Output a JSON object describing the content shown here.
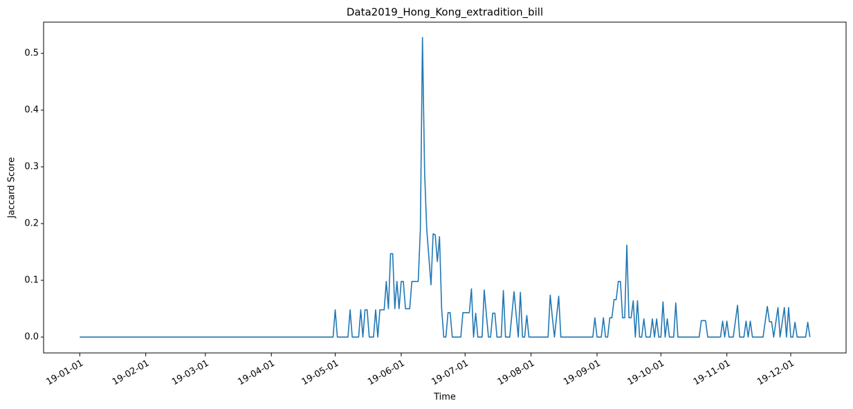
{
  "chart_data": {
    "type": "line",
    "title": "Data2019_Hong_Kong_extradition_bill",
    "x_label": "Time",
    "y_label": "Jaccard Score",
    "xlim": [
      "2018-12-15",
      "2019-12-27"
    ],
    "ylim": [
      -0.028,
      0.555
    ],
    "xticks": [
      {
        "value": "2019-01-01",
        "label": "19-01-01"
      },
      {
        "value": "2019-02-01",
        "label": "19-02-01"
      },
      {
        "value": "2019-03-01",
        "label": "19-03-01"
      },
      {
        "value": "2019-04-01",
        "label": "19-04-01"
      },
      {
        "value": "2019-05-01",
        "label": "19-05-01"
      },
      {
        "value": "2019-06-01",
        "label": "19-06-01"
      },
      {
        "value": "2019-07-01",
        "label": "19-07-01"
      },
      {
        "value": "2019-08-01",
        "label": "19-08-01"
      },
      {
        "value": "2019-09-01",
        "label": "19-09-01"
      },
      {
        "value": "2019-10-01",
        "label": "19-10-01"
      },
      {
        "value": "2019-11-01",
        "label": "19-11-01"
      },
      {
        "value": "2019-12-01",
        "label": "19-12-01"
      }
    ],
    "yticks": [
      {
        "value": 0,
        "label": "0.0"
      },
      0.1,
      0.2,
      0.3,
      0.4,
      0.5
    ],
    "color": "#1f77b4",
    "x": [
      "2019-01-01",
      "2019-04-30",
      "2019-05-01",
      "2019-05-02",
      "2019-05-07",
      "2019-05-08",
      "2019-05-09",
      "2019-05-12",
      "2019-05-13",
      "2019-05-14",
      "2019-05-15",
      "2019-05-16",
      "2019-05-17",
      "2019-05-19",
      "2019-05-20",
      "2019-05-21",
      "2019-05-22",
      "2019-05-24",
      "2019-05-25",
      "2019-05-26",
      "2019-05-27",
      "2019-05-28",
      "2019-05-29",
      "2019-05-30",
      "2019-05-31",
      "2019-06-01",
      "2019-06-02",
      "2019-06-03",
      "2019-06-05",
      "2019-06-06",
      "2019-06-09",
      "2019-06-10",
      "2019-06-11",
      "2019-06-12",
      "2019-06-13",
      "2019-06-15",
      "2019-06-16",
      "2019-06-17",
      "2019-06-18",
      "2019-06-19",
      "2019-06-20",
      "2019-06-21",
      "2019-06-22",
      "2019-06-23",
      "2019-06-24",
      "2019-06-25",
      "2019-06-29",
      "2019-06-30",
      "2019-07-03",
      "2019-07-04",
      "2019-07-05",
      "2019-07-06",
      "2019-07-07",
      "2019-07-09",
      "2019-07-10",
      "2019-07-11",
      "2019-07-12",
      "2019-07-13",
      "2019-07-14",
      "2019-07-15",
      "2019-07-16",
      "2019-07-18",
      "2019-07-19",
      "2019-07-20",
      "2019-07-22",
      "2019-07-23",
      "2019-07-24",
      "2019-07-25",
      "2019-07-26",
      "2019-07-27",
      "2019-07-28",
      "2019-07-29",
      "2019-07-30",
      "2019-07-31",
      "2019-08-09",
      "2019-08-10",
      "2019-08-11",
      "2019-08-12",
      "2019-08-14",
      "2019-08-15",
      "2019-08-30",
      "2019-08-31",
      "2019-09-01",
      "2019-09-03",
      "2019-09-04",
      "2019-09-05",
      "2019-09-06",
      "2019-09-07",
      "2019-09-08",
      "2019-09-09",
      "2019-09-10",
      "2019-09-11",
      "2019-09-12",
      "2019-09-13",
      "2019-09-14",
      "2019-09-15",
      "2019-09-16",
      "2019-09-17",
      "2019-09-18",
      "2019-09-19",
      "2019-09-20",
      "2019-09-21",
      "2019-09-22",
      "2019-09-23",
      "2019-09-24",
      "2019-09-26",
      "2019-09-27",
      "2019-09-28",
      "2019-09-29",
      "2019-09-30",
      "2019-10-01",
      "2019-10-02",
      "2019-10-03",
      "2019-10-04",
      "2019-10-05",
      "2019-10-07",
      "2019-10-08",
      "2019-10-09",
      "2019-10-19",
      "2019-10-20",
      "2019-10-22",
      "2019-10-23",
      "2019-10-29",
      "2019-10-30",
      "2019-10-31",
      "2019-11-01",
      "2019-11-02",
      "2019-11-04",
      "2019-11-05",
      "2019-11-06",
      "2019-11-07",
      "2019-11-09",
      "2019-11-10",
      "2019-11-11",
      "2019-11-12",
      "2019-11-13",
      "2019-11-18",
      "2019-11-20",
      "2019-11-21",
      "2019-11-22",
      "2019-11-23",
      "2019-11-25",
      "2019-11-26",
      "2019-11-28",
      "2019-11-29",
      "2019-11-30",
      "2019-12-01",
      "2019-12-02",
      "2019-12-03",
      "2019-12-04",
      "2019-12-08",
      "2019-12-09",
      "2019-12-10"
    ],
    "values": [
      0,
      0,
      0.048,
      0,
      0,
      0.048,
      0,
      0,
      0.048,
      0,
      0.048,
      0.048,
      0,
      0,
      0.048,
      0,
      0.048,
      0.048,
      0.098,
      0.05,
      0.147,
      0.147,
      0.05,
      0.098,
      0.05,
      0.098,
      0.098,
      0.05,
      0.05,
      0.098,
      0.098,
      0.19,
      0.528,
      0.29,
      0.19,
      0.092,
      0.182,
      0.18,
      0.133,
      0.177,
      0.05,
      0,
      0,
      0.043,
      0.043,
      0,
      0,
      0.043,
      0.043,
      0.085,
      0,
      0.042,
      0,
      0,
      0.083,
      0.04,
      0,
      0,
      0.042,
      0.042,
      0,
      0,
      0.082,
      0,
      0,
      0.04,
      0.08,
      0.04,
      0,
      0.079,
      0,
      0,
      0.038,
      0,
      0,
      0.074,
      0.035,
      0,
      0.072,
      0,
      0,
      0.034,
      0,
      0,
      0.034,
      0,
      0,
      0.034,
      0.034,
      0.066,
      0.066,
      0.098,
      0.098,
      0.034,
      0.034,
      0.162,
      0.034,
      0.034,
      0.064,
      0,
      0.064,
      0,
      0,
      0.032,
      0,
      0,
      0.032,
      0,
      0.032,
      0,
      0,
      0.062,
      0,
      0.032,
      0,
      0,
      0.06,
      0,
      0,
      0.029,
      0.029,
      0,
      0,
      0.028,
      0,
      0.028,
      0,
      0,
      0.028,
      0.056,
      0,
      0,
      0.028,
      0,
      0.028,
      0,
      0,
      0.054,
      0.027,
      0.027,
      0,
      0.052,
      0,
      0.052,
      0,
      0.052,
      0,
      0,
      0.026,
      0,
      0,
      0.026,
      0
    ]
  }
}
